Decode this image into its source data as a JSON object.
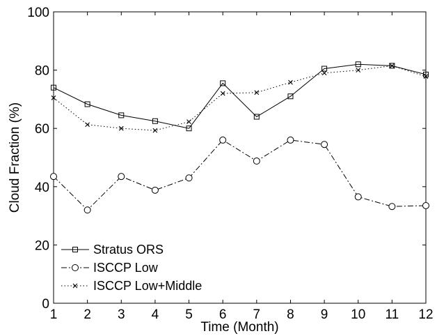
{
  "chart_data": {
    "type": "line",
    "title": "",
    "xlabel": "Time (Month)",
    "ylabel": "Cloud Fraction (%)",
    "xlim": [
      1,
      12
    ],
    "ylim": [
      0,
      100
    ],
    "xticks": [
      1,
      2,
      3,
      4,
      5,
      6,
      7,
      8,
      9,
      10,
      11,
      12
    ],
    "yticks": [
      0,
      20,
      40,
      60,
      80,
      100
    ],
    "grid": false,
    "legend": "bottom-left",
    "x": [
      1,
      2,
      3,
      4,
      5,
      6,
      7,
      8,
      9,
      10,
      11,
      12
    ],
    "series": [
      {
        "name": "Stratus ORS",
        "values": [
          74.0,
          68.3,
          64.5,
          62.5,
          60.0,
          75.5,
          64.0,
          71.0,
          80.5,
          82.0,
          81.5,
          78.5
        ],
        "line_style": "solid",
        "marker": "square",
        "color": "#000000"
      },
      {
        "name": "ISCCP Low",
        "values": [
          43.5,
          32.0,
          43.5,
          38.8,
          43.0,
          56.0,
          48.8,
          56.0,
          54.5,
          36.5,
          33.2,
          33.5
        ],
        "line_style": "dashdot",
        "marker": "circle",
        "color": "#000000"
      },
      {
        "name": "ISCCP Low+Middle",
        "values": [
          70.5,
          61.3,
          60.0,
          59.3,
          62.3,
          72.0,
          72.3,
          75.8,
          79.0,
          80.0,
          81.5,
          77.8
        ],
        "line_style": "dotted",
        "marker": "x",
        "color": "#000000"
      }
    ]
  }
}
